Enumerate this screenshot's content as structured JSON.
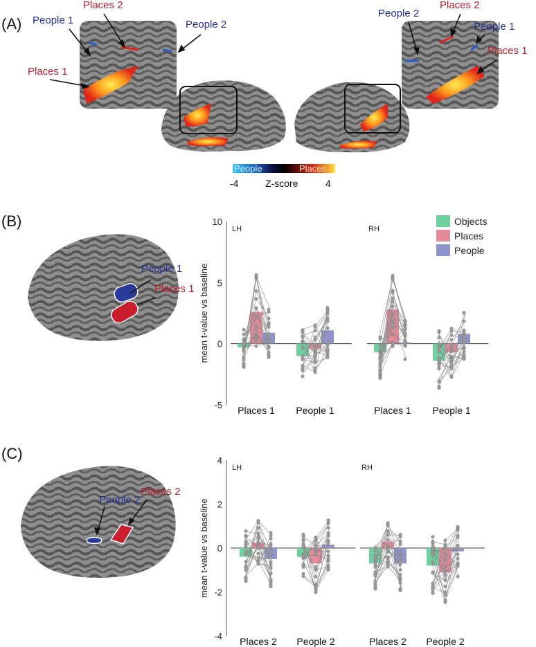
{
  "panels": {
    "a": "(A)",
    "b": "(B)",
    "c": "(C)"
  },
  "panel_a": {
    "left_labels": {
      "places1": "Places 1",
      "places2": "Places 2",
      "people1": "People 1",
      "people2": "People 2"
    },
    "right_labels": {
      "places1": "Places 1",
      "places2": "Places 2",
      "people1": "People 1",
      "people2": "People 2"
    },
    "colorbar": {
      "people": "People",
      "places": "Places",
      "min": "-4",
      "max": "4",
      "title": "Z-score"
    }
  },
  "panel_b": {
    "brain_labels": {
      "people": "People 1",
      "places": "Places 1"
    }
  },
  "panel_c": {
    "brain_labels": {
      "people": "People 2",
      "places": "Places 2"
    }
  },
  "colors": {
    "objects": "#6fcf9f",
    "places": "#e58a99",
    "people": "#8e93c9",
    "people_label": "#22309a",
    "places_label": "#c01e2a"
  },
  "chart_data": [
    {
      "type": "bar",
      "panel": "B",
      "ylabel": "mean t-value vs baseline",
      "ylim": [
        -5,
        10
      ],
      "yticks": [
        "10",
        "5",
        "0",
        "-5"
      ],
      "legend": [
        "Objects",
        "Places",
        "People"
      ],
      "hemispheres": [
        {
          "name": "LH",
          "groups": [
            {
              "label": "Places 1",
              "series": [
                {
                  "name": "Objects",
                  "value": -0.3
                },
                {
                  "name": "Places",
                  "value": 2.6
                },
                {
                  "name": "People",
                  "value": 0.9
                }
              ]
            },
            {
              "label": "People 1",
              "series": [
                {
                  "name": "Objects",
                  "value": -1.0
                },
                {
                  "name": "Places",
                  "value": -0.4
                },
                {
                  "name": "People",
                  "value": 1.1
                }
              ]
            }
          ]
        },
        {
          "name": "RH",
          "groups": [
            {
              "label": "Places 1",
              "series": [
                {
                  "name": "Objects",
                  "value": -0.7
                },
                {
                  "name": "Places",
                  "value": 2.8
                },
                {
                  "name": "People",
                  "value": 0.1
                }
              ]
            },
            {
              "label": "People 1",
              "series": [
                {
                  "name": "Objects",
                  "value": -1.4
                },
                {
                  "name": "Places",
                  "value": -0.7
                },
                {
                  "name": "People",
                  "value": 0.8
                }
              ]
            }
          ]
        }
      ]
    },
    {
      "type": "bar",
      "panel": "C",
      "ylabel": "mean t-value vs baseline",
      "ylim": [
        -4,
        4
      ],
      "yticks": [
        "4",
        "2",
        "0",
        "-2",
        "-4"
      ],
      "hemispheres": [
        {
          "name": "LH",
          "groups": [
            {
              "label": "Places 2",
              "series": [
                {
                  "name": "Objects",
                  "value": -0.4
                },
                {
                  "name": "Places",
                  "value": 0.25
                },
                {
                  "name": "People",
                  "value": -0.5
                }
              ]
            },
            {
              "label": "People 2",
              "series": [
                {
                  "name": "Objects",
                  "value": -0.4
                },
                {
                  "name": "Places",
                  "value": -0.7
                },
                {
                  "name": "People",
                  "value": 0.15
                }
              ]
            }
          ]
        },
        {
          "name": "RH",
          "groups": [
            {
              "label": "Places 2",
              "series": [
                {
                  "name": "Objects",
                  "value": -0.7
                },
                {
                  "name": "Places",
                  "value": 0.3
                },
                {
                  "name": "People",
                  "value": -0.7
                }
              ]
            },
            {
              "label": "People 2",
              "series": [
                {
                  "name": "Objects",
                  "value": -0.8
                },
                {
                  "name": "Places",
                  "value": -1.1
                },
                {
                  "name": "People",
                  "value": -0.15
                }
              ]
            }
          ]
        }
      ]
    }
  ]
}
